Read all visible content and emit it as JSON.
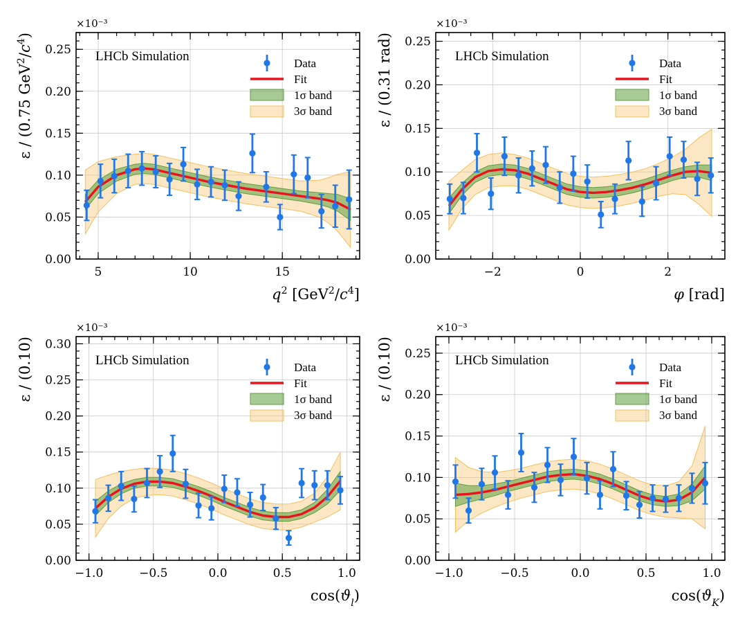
{
  "figure": {
    "legend_entries": [
      "Data",
      "Fit",
      "1σ band",
      "3σ band"
    ],
    "colors": {
      "data": "#1f77e8",
      "fit": "#e8141c",
      "band1": "#5e9e42",
      "band3": "#f5c060"
    }
  },
  "chart_data": [
    {
      "type": "scatter",
      "id": "q2",
      "title": "LHCb Simulation",
      "xlabel_parts": [
        [
          "q",
          "i"
        ],
        [
          "2",
          "sup"
        ],
        [
          " [GeV",
          ""
        ],
        [
          "2",
          "sup"
        ],
        [
          "/",
          ""
        ],
        [
          "c",
          "i"
        ],
        [
          "4",
          "sup"
        ],
        [
          "]",
          ""
        ]
      ],
      "ylabel_parts": [
        [
          "ε / (0.75 GeV",
          ""
        ],
        [
          "2",
          "sup"
        ],
        [
          "/",
          ""
        ],
        [
          "c",
          "i"
        ],
        [
          "4",
          "sup"
        ],
        [
          ")",
          ""
        ]
      ],
      "exponent_label": "×10⁻³",
      "xlim": [
        3.8,
        19.2
      ],
      "ylim": [
        0,
        0.27
      ],
      "xticks": [
        5,
        10,
        15
      ],
      "xtick_labels": [
        "5",
        "10",
        "15"
      ],
      "xminor_step": 1,
      "yticks": [
        0,
        0.05,
        0.1,
        0.15,
        0.2,
        0.25
      ],
      "ytick_labels": [
        "0.00",
        "0.05",
        "0.10",
        "0.15",
        "0.20",
        "0.25"
      ],
      "yminor_step": 0.01,
      "legend_position": "top-right",
      "data": {
        "x": [
          4.375,
          5.125,
          5.875,
          6.625,
          7.375,
          8.125,
          8.875,
          9.625,
          10.375,
          11.125,
          11.875,
          12.625,
          13.375,
          14.125,
          14.875,
          15.625,
          16.375,
          17.125,
          17.875,
          18.625
        ],
        "y": [
          0.064,
          0.093,
          0.099,
          0.105,
          0.108,
          0.104,
          0.095,
          0.113,
          0.089,
          0.092,
          0.088,
          0.075,
          0.126,
          0.086,
          0.05,
          0.101,
          0.097,
          0.057,
          0.063,
          0.071
        ],
        "yerr": [
          0.018,
          0.02,
          0.02,
          0.02,
          0.02,
          0.019,
          0.019,
          0.02,
          0.018,
          0.018,
          0.018,
          0.017,
          0.023,
          0.018,
          0.015,
          0.023,
          0.024,
          0.02,
          0.025,
          0.035
        ]
      },
      "fit": {
        "x": [
          4.3,
          5.0,
          6.0,
          7.0,
          7.5,
          8.0,
          9.0,
          10.0,
          11.0,
          12.0,
          13.0,
          14.0,
          15.0,
          16.0,
          17.0,
          17.5,
          18.0,
          18.7
        ],
        "y": [
          0.068,
          0.086,
          0.1,
          0.107,
          0.108,
          0.107,
          0.102,
          0.097,
          0.092,
          0.088,
          0.084,
          0.081,
          0.078,
          0.075,
          0.072,
          0.07,
          0.067,
          0.059
        ]
      },
      "band1_halfwidth": [
        0.009,
        0.008,
        0.007,
        0.006,
        0.006,
        0.006,
        0.006,
        0.006,
        0.006,
        0.006,
        0.006,
        0.006,
        0.006,
        0.006,
        0.007,
        0.008,
        0.01,
        0.013
      ],
      "band3_halfwidth": [
        0.038,
        0.03,
        0.022,
        0.018,
        0.018,
        0.018,
        0.018,
        0.018,
        0.018,
        0.018,
        0.018,
        0.018,
        0.018,
        0.018,
        0.022,
        0.027,
        0.034,
        0.045
      ]
    },
    {
      "type": "scatter",
      "id": "phi",
      "title": "LHCb Simulation",
      "xlabel_parts": [
        [
          "φ",
          "i"
        ],
        [
          " [rad]",
          ""
        ]
      ],
      "ylabel_parts": [
        [
          "ε / (0.31 rad)",
          ""
        ]
      ],
      "exponent_label": "×10⁻³",
      "xlim": [
        -3.3,
        3.3
      ],
      "ylim": [
        0,
        0.26
      ],
      "xticks": [
        -2,
        0,
        2
      ],
      "xtick_labels": [
        "−2",
        "0",
        "2"
      ],
      "xminor_step": 0.5,
      "yticks": [
        0,
        0.05,
        0.1,
        0.15,
        0.2,
        0.25
      ],
      "ytick_labels": [
        "0.00",
        "0.05",
        "0.10",
        "0.15",
        "0.20",
        "0.25"
      ],
      "yminor_step": 0.01,
      "legend_position": "top-right",
      "data": {
        "x": [
          -2.98,
          -2.67,
          -2.36,
          -2.04,
          -1.73,
          -1.41,
          -1.1,
          -0.79,
          -0.47,
          -0.16,
          0.16,
          0.47,
          0.79,
          1.1,
          1.41,
          1.73,
          2.04,
          2.36,
          2.67,
          2.98
        ],
        "y": [
          0.069,
          0.07,
          0.122,
          0.075,
          0.118,
          0.096,
          0.104,
          0.108,
          0.082,
          0.098,
          0.089,
          0.051,
          0.069,
          0.113,
          0.066,
          0.087,
          0.118,
          0.114,
          0.092,
          0.096
        ],
        "yerr": [
          0.017,
          0.018,
          0.022,
          0.018,
          0.022,
          0.02,
          0.02,
          0.021,
          0.018,
          0.02,
          0.019,
          0.015,
          0.017,
          0.022,
          0.017,
          0.019,
          0.022,
          0.021,
          0.019,
          0.02
        ]
      },
      "fit": {
        "x": [
          -3.0,
          -2.7,
          -2.4,
          -2.1,
          -1.8,
          -1.5,
          -1.2,
          -0.9,
          -0.6,
          -0.3,
          0.0,
          0.3,
          0.6,
          0.9,
          1.2,
          1.5,
          1.8,
          2.1,
          2.4,
          2.7,
          3.0
        ],
        "y": [
          0.061,
          0.08,
          0.094,
          0.101,
          0.103,
          0.102,
          0.098,
          0.092,
          0.086,
          0.08,
          0.077,
          0.076,
          0.077,
          0.079,
          0.082,
          0.086,
          0.091,
          0.096,
          0.1,
          0.101,
          0.099
        ]
      },
      "band1_halfwidth": [
        0.009,
        0.007,
        0.006,
        0.006,
        0.006,
        0.006,
        0.006,
        0.006,
        0.006,
        0.006,
        0.006,
        0.006,
        0.006,
        0.006,
        0.006,
        0.006,
        0.006,
        0.006,
        0.006,
        0.007,
        0.009
      ],
      "band3_halfwidth": [
        0.028,
        0.022,
        0.02,
        0.019,
        0.019,
        0.018,
        0.018,
        0.018,
        0.018,
        0.018,
        0.018,
        0.018,
        0.018,
        0.018,
        0.018,
        0.018,
        0.019,
        0.021,
        0.026,
        0.038,
        0.05
      ]
    },
    {
      "type": "scatter",
      "id": "costhetal",
      "title": "LHCb Simulation",
      "xlabel_parts": [
        [
          "cos(",
          ""
        ],
        [
          "ϑ",
          "i"
        ],
        [
          "l",
          "isub"
        ],
        [
          ")",
          ""
        ]
      ],
      "ylabel_parts": [
        [
          "ε / (0.10)",
          ""
        ]
      ],
      "exponent_label": "×10⁻³",
      "xlim": [
        -1.1,
        1.1
      ],
      "ylim": [
        0,
        0.31
      ],
      "xticks": [
        -1.0,
        -0.5,
        0.0,
        0.5,
        1.0
      ],
      "xtick_labels": [
        "−1.0",
        "−0.5",
        "0.0",
        "0.5",
        "1.0"
      ],
      "xminor_step": 0.1,
      "yticks": [
        0,
        0.05,
        0.1,
        0.15,
        0.2,
        0.25,
        0.3
      ],
      "ytick_labels": [
        "0.00",
        "0.05",
        "0.10",
        "0.15",
        "0.20",
        "0.25",
        "0.30"
      ],
      "yminor_step": 0.01,
      "legend_position": "top-right",
      "data": {
        "x": [
          -0.95,
          -0.85,
          -0.75,
          -0.65,
          -0.55,
          -0.45,
          -0.35,
          -0.25,
          -0.15,
          -0.05,
          0.05,
          0.15,
          0.25,
          0.35,
          0.45,
          0.55,
          0.65,
          0.75,
          0.85,
          0.95
        ],
        "y": [
          0.068,
          0.086,
          0.103,
          0.085,
          0.107,
          0.123,
          0.148,
          0.106,
          0.076,
          0.072,
          0.099,
          0.094,
          0.077,
          0.087,
          0.058,
          0.031,
          0.107,
          0.104,
          0.104,
          0.097
        ],
        "yerr": [
          0.016,
          0.018,
          0.02,
          0.018,
          0.02,
          0.022,
          0.025,
          0.02,
          0.017,
          0.016,
          0.019,
          0.019,
          0.017,
          0.018,
          0.015,
          0.01,
          0.02,
          0.02,
          0.02,
          0.019
        ]
      },
      "fit": {
        "x": [
          -0.95,
          -0.85,
          -0.75,
          -0.65,
          -0.55,
          -0.45,
          -0.35,
          -0.25,
          -0.15,
          -0.05,
          0.05,
          0.15,
          0.25,
          0.35,
          0.45,
          0.55,
          0.65,
          0.75,
          0.85,
          0.95
        ],
        "y": [
          0.072,
          0.088,
          0.099,
          0.106,
          0.109,
          0.109,
          0.107,
          0.102,
          0.096,
          0.089,
          0.081,
          0.074,
          0.067,
          0.062,
          0.06,
          0.06,
          0.064,
          0.073,
          0.088,
          0.11
        ]
      },
      "band1_halfwidth": [
        0.01,
        0.008,
        0.007,
        0.006,
        0.006,
        0.006,
        0.006,
        0.006,
        0.006,
        0.006,
        0.006,
        0.006,
        0.006,
        0.006,
        0.006,
        0.006,
        0.006,
        0.007,
        0.01,
        0.013
      ],
      "band3_halfwidth": [
        0.04,
        0.03,
        0.024,
        0.02,
        0.019,
        0.018,
        0.018,
        0.018,
        0.018,
        0.018,
        0.018,
        0.018,
        0.018,
        0.018,
        0.018,
        0.018,
        0.018,
        0.02,
        0.028,
        0.04
      ]
    },
    {
      "type": "scatter",
      "id": "costhetak",
      "title": "LHCb Simulation",
      "xlabel_parts": [
        [
          "cos(",
          ""
        ],
        [
          "ϑ",
          "i"
        ],
        [
          "K",
          "isub"
        ],
        [
          ")",
          ""
        ]
      ],
      "ylabel_parts": [
        [
          "ε / (0.10)",
          ""
        ]
      ],
      "exponent_label": "×10⁻³",
      "xlim": [
        -1.1,
        1.1
      ],
      "ylim": [
        0,
        0.27
      ],
      "xticks": [
        -1.0,
        -0.5,
        0.0,
        0.5,
        1.0
      ],
      "xtick_labels": [
        "−1.0",
        "−0.5",
        "0.0",
        "0.5",
        "1.0"
      ],
      "xminor_step": 0.1,
      "yticks": [
        0,
        0.05,
        0.1,
        0.15,
        0.2,
        0.25
      ],
      "ytick_labels": [
        "0.00",
        "0.05",
        "0.10",
        "0.15",
        "0.20",
        "0.25"
      ],
      "yminor_step": 0.01,
      "legend_position": "top-right",
      "data": {
        "x": [
          -0.95,
          -0.85,
          -0.75,
          -0.65,
          -0.55,
          -0.45,
          -0.35,
          -0.25,
          -0.15,
          -0.05,
          0.05,
          0.15,
          0.25,
          0.35,
          0.45,
          0.55,
          0.65,
          0.75,
          0.85,
          0.95
        ],
        "y": [
          0.095,
          0.06,
          0.092,
          0.106,
          0.079,
          0.13,
          0.088,
          0.115,
          0.097,
          0.125,
          0.099,
          0.079,
          0.11,
          0.078,
          0.067,
          0.075,
          0.074,
          0.075,
          0.087,
          0.093
        ],
        "yerr": [
          0.02,
          0.015,
          0.019,
          0.02,
          0.017,
          0.023,
          0.018,
          0.021,
          0.019,
          0.022,
          0.019,
          0.017,
          0.021,
          0.017,
          0.016,
          0.016,
          0.016,
          0.016,
          0.018,
          0.025
        ]
      },
      "fit": {
        "x": [
          -0.95,
          -0.85,
          -0.75,
          -0.65,
          -0.55,
          -0.45,
          -0.35,
          -0.25,
          -0.15,
          -0.05,
          0.05,
          0.15,
          0.25,
          0.35,
          0.45,
          0.55,
          0.65,
          0.75,
          0.85,
          0.95
        ],
        "y": [
          0.079,
          0.08,
          0.082,
          0.085,
          0.089,
          0.093,
          0.097,
          0.101,
          0.103,
          0.104,
          0.102,
          0.098,
          0.092,
          0.085,
          0.078,
          0.073,
          0.071,
          0.073,
          0.082,
          0.1
        ]
      },
      "band1_halfwidth": [
        0.014,
        0.01,
        0.008,
        0.007,
        0.006,
        0.006,
        0.006,
        0.006,
        0.006,
        0.006,
        0.006,
        0.006,
        0.006,
        0.006,
        0.006,
        0.006,
        0.006,
        0.007,
        0.01,
        0.014
      ],
      "band3_halfwidth": [
        0.045,
        0.032,
        0.025,
        0.021,
        0.019,
        0.018,
        0.018,
        0.018,
        0.018,
        0.018,
        0.018,
        0.018,
        0.018,
        0.018,
        0.018,
        0.018,
        0.019,
        0.022,
        0.032,
        0.062
      ]
    }
  ]
}
